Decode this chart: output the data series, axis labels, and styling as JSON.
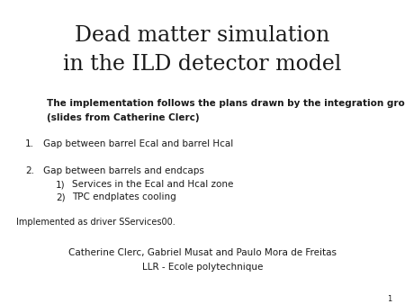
{
  "title_line1": "Dead matter simulation",
  "title_line2": "in the ILD detector model",
  "bold_text_line1": "The implementation follows the plans drawn by the integration group",
  "bold_text_line2": "(slides from Catherine Clerc)",
  "item1": "Gap between barrel Ecal and barrel Hcal",
  "item2": "Gap between barrels and endcaps",
  "item2_sub1": "Services in the Ecal and Hcal zone",
  "item2_sub2": "TPC endplates cooling",
  "footer_note": "Implemented as driver SServices00.",
  "author_line1": "Catherine Clerc, Gabriel Musat and Paulo Mora de Freitas",
  "author_line2": "LLR - Ecole polytechnique",
  "page_number": "1",
  "background_color": "#ffffff",
  "title_color": "#1a1a1a",
  "text_color": "#1a1a1a",
  "title_fontsize": 17,
  "bold_fontsize": 7.5,
  "body_fontsize": 7.5,
  "author_fontsize": 7.5,
  "page_fontsize": 6
}
